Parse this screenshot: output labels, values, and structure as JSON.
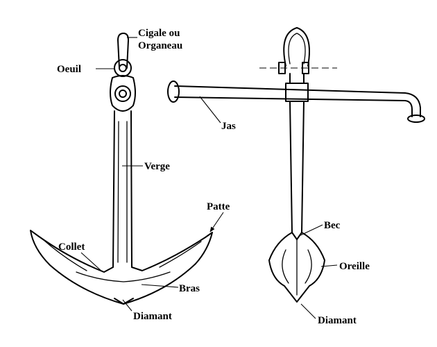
{
  "labels": {
    "cigale": "Cigale ou",
    "organeau": "Organeau",
    "oeuil": "Oeuil",
    "verge": "Verge",
    "collet": "Collet",
    "patte": "Patte",
    "bras": "Bras",
    "diamant_left": "Diamant",
    "jas": "Jas",
    "bec": "Bec",
    "oreille": "Oreille",
    "diamant_right": "Diamant"
  }
}
